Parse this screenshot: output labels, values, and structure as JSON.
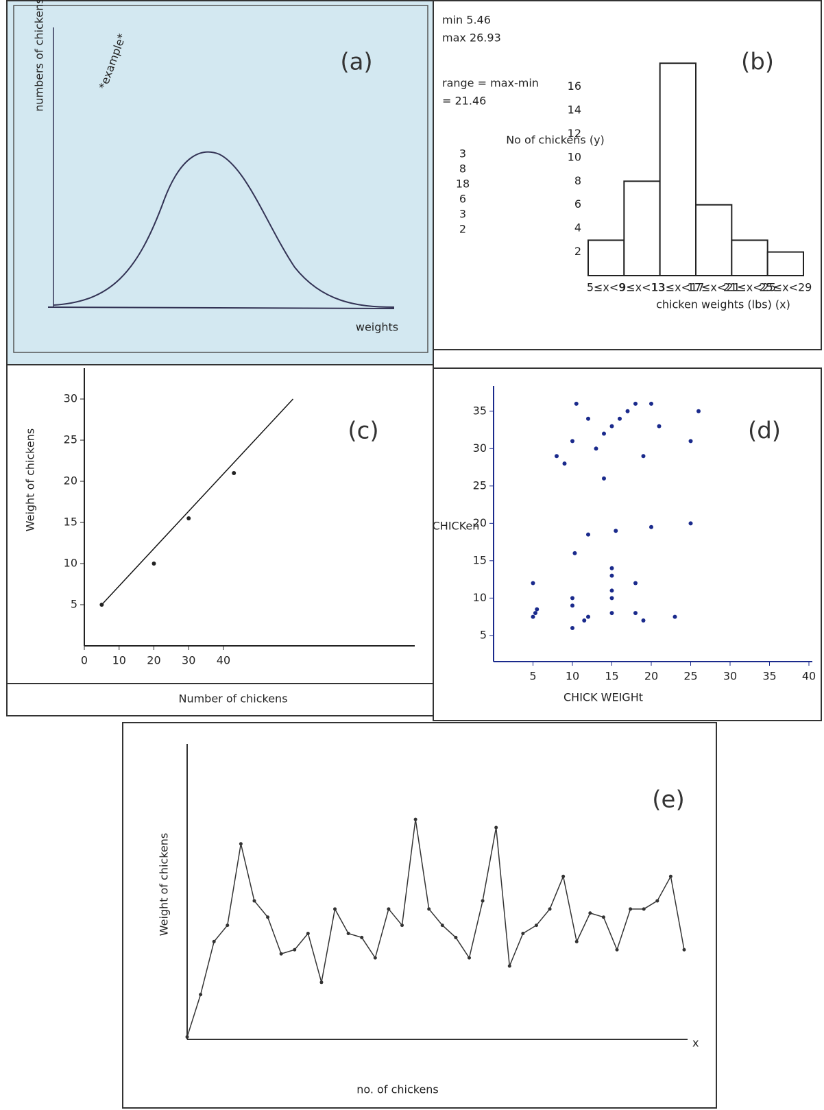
{
  "chart_data": [
    {
      "type": "line",
      "title": "(a)",
      "annotation": "*example*",
      "y_label": "numbers of chickens",
      "x_label": "weights"
    },
    {
      "type": "histogram",
      "title": "(b)",
      "annotations": [
        "min 5.46",
        "max 26.93",
        "range = max-min",
        "= 21.46"
      ],
      "categories": [
        "5≤x<9",
        "9≤x<13",
        "13≤x<17",
        "17≤x<21",
        "21≤x<25",
        "25≤x<29"
      ],
      "values": [
        3,
        8,
        18,
        6,
        3,
        2
      ],
      "ylim": [
        0,
        19
      ],
      "yticks": [
        2,
        4,
        6,
        8,
        10,
        12,
        14,
        16
      ],
      "y_label": "No of chickens (y)",
      "x_label": "chicken weights (lbs) (x)",
      "color": "#ffffff"
    },
    {
      "type": "scatter",
      "title": "(c)",
      "x": [
        5,
        20,
        30,
        43
      ],
      "values": [
        5,
        10,
        15.5,
        21
      ],
      "trend_x": [
        5,
        60
      ],
      "trend_values": [
        5,
        30
      ],
      "xlim": [
        0,
        94
      ],
      "ylim": [
        0,
        32.5
      ],
      "xticks": [
        0,
        10,
        20,
        30,
        40
      ],
      "yticks": [
        5,
        10,
        15,
        20,
        25,
        30
      ],
      "x_label": "Number of chickens",
      "y_label": "Weight of chickens",
      "color": "#222222"
    },
    {
      "type": "scatter",
      "title": "(d)",
      "x": [
        5,
        5.3,
        5.5,
        5,
        10,
        10,
        10,
        11.5,
        12,
        10.3,
        12,
        15,
        15,
        15,
        15,
        15,
        18,
        18,
        19,
        23,
        20,
        25,
        14,
        15.5,
        9,
        10,
        10.5,
        12,
        13,
        14,
        15,
        16,
        17,
        18,
        19,
        20,
        21,
        25,
        26,
        8
      ],
      "values": [
        7.5,
        8,
        8.5,
        12,
        9,
        10,
        6,
        7,
        7.5,
        16,
        18.5,
        14,
        13,
        11,
        10,
        8,
        12,
        8,
        7,
        7.5,
        19.5,
        20,
        26,
        19,
        28,
        31,
        36,
        34,
        30,
        32,
        33,
        34,
        35,
        36,
        29,
        36,
        33,
        31,
        35,
        29
      ],
      "xlim": [
        0,
        40
      ],
      "ylim": [
        1.5,
        37
      ],
      "xticks": [
        5,
        10,
        15,
        20,
        25,
        30,
        35,
        40
      ],
      "yticks": [
        5,
        10,
        15,
        20,
        25,
        30,
        35
      ],
      "x_label": "CHICK WEIGHt",
      "y_label": "CHICKen",
      "color": "#1a2a8c"
    },
    {
      "type": "line",
      "title": "(e)",
      "x": [
        0,
        1,
        2,
        3,
        4,
        5,
        6,
        7,
        8,
        9,
        10,
        11,
        12,
        13,
        14,
        15,
        16,
        17,
        18,
        19,
        20,
        21,
        22,
        23,
        24,
        25,
        26,
        27,
        28,
        29,
        30,
        31,
        32,
        33,
        34,
        35,
        36,
        37
      ],
      "values": [
        0.3,
        5.5,
        12,
        14,
        24,
        17,
        15,
        10.5,
        11,
        13,
        7,
        16,
        13,
        12.5,
        10,
        16,
        14,
        27,
        16,
        14,
        12.5,
        10,
        17,
        26,
        9,
        13,
        14,
        16,
        20,
        12,
        15.5,
        15,
        11,
        16,
        16,
        17,
        20,
        11
      ],
      "xlim": [
        0,
        37
      ],
      "ylim": [
        0,
        35
      ],
      "x_label": "no. of chickens",
      "y_label": "Weight of chickens",
      "x_axis_mark": "x",
      "color": "#333333"
    }
  ]
}
